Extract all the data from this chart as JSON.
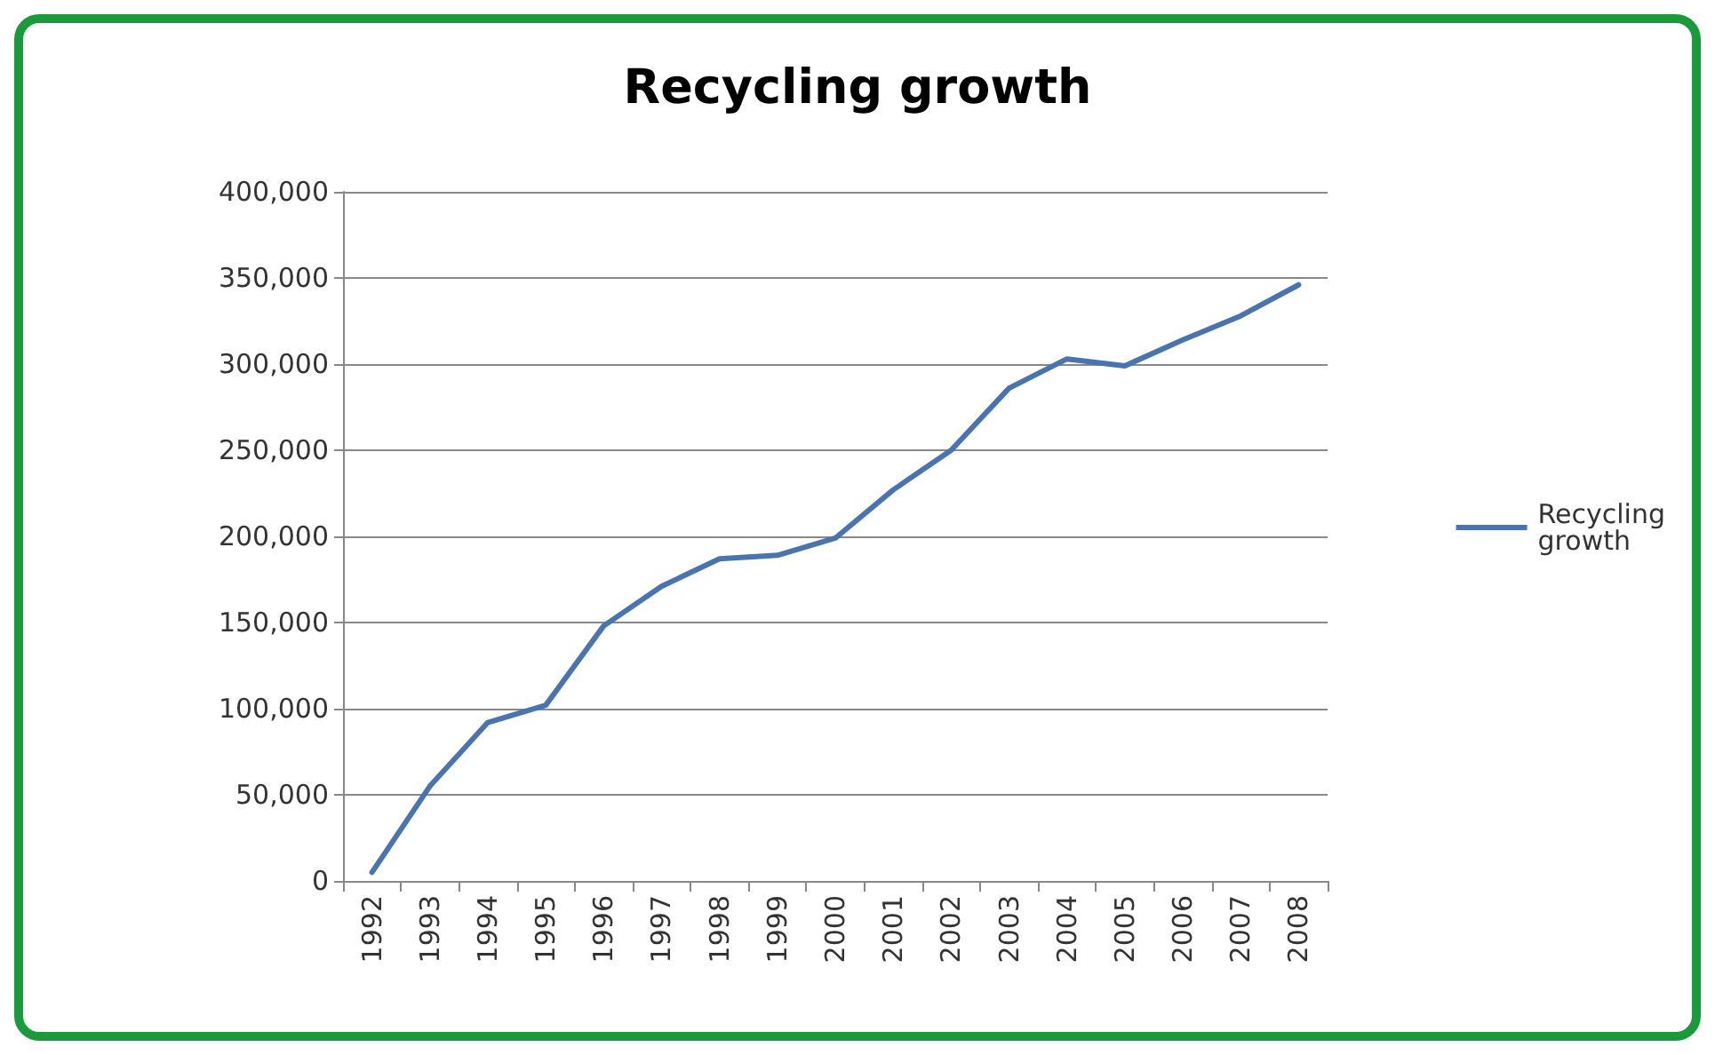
{
  "chart_data": {
    "type": "line",
    "title": "Recycling growth",
    "categories": [
      "1992",
      "1993",
      "1994",
      "1995",
      "1996",
      "1997",
      "1998",
      "1999",
      "2000",
      "2001",
      "2002",
      "2003",
      "2004",
      "2005",
      "2006",
      "2007",
      "2008"
    ],
    "series": [
      {
        "name": "Recycling growth",
        "color": "#4a74b0",
        "values": [
          5000,
          55000,
          92000,
          102000,
          148000,
          171000,
          187000,
          189000,
          199000,
          227000,
          250000,
          286000,
          303000,
          299000,
          314000,
          328000,
          346000
        ]
      }
    ],
    "ylim": [
      0,
      400000
    ],
    "yticks": [
      0,
      {
        "value": 50000,
        "label": "50,000"
      },
      {
        "value": 100000,
        "label": "100,000"
      },
      {
        "value": 150000,
        "label": "150,000"
      },
      {
        "value": 200000,
        "label": "200,000"
      },
      {
        "value": 250000,
        "label": "250,000"
      },
      {
        "value": 300000,
        "label": "300,000"
      },
      {
        "value": 350000,
        "label": "350,000"
      },
      {
        "value": 400000,
        "label": "400,000"
      }
    ],
    "grid": "y",
    "legend": "right",
    "marker": "none",
    "line_style": "solid"
  }
}
